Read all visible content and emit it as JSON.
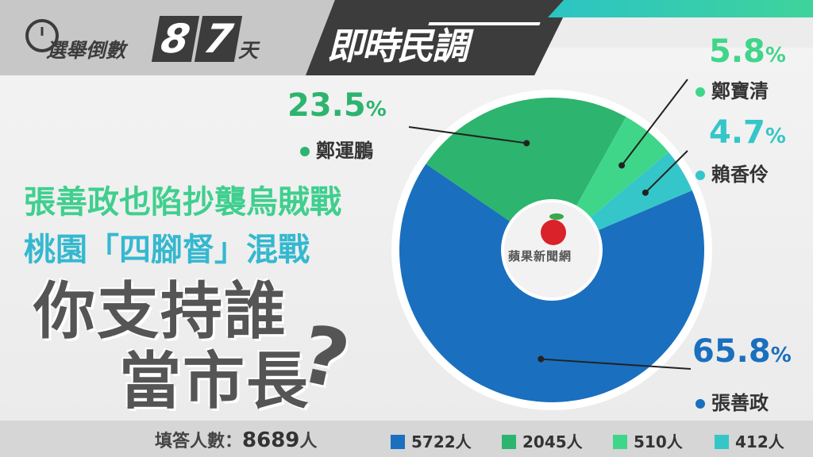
{
  "header": {
    "countdown_label": "選舉倒數",
    "countdown_digits": [
      "8",
      "7"
    ],
    "countdown_unit": "天",
    "poll_title": "即時民調"
  },
  "headlines": {
    "line1": "張善政也陷抄襲烏賊戰",
    "line2": "桃園「四腳督」混戰",
    "question_line1": "你支持誰",
    "question_line2": "當市長",
    "question_mark": "?"
  },
  "logo": {
    "text": "蘋果新聞網"
  },
  "footer": {
    "respondents_label": "填答人數：",
    "respondents_count": "8689",
    "respondents_unit": "人"
  },
  "colors": {
    "blue": "#1a6fbf",
    "green": "#2db46e",
    "light_green": "#3fd68a",
    "teal": "#35c6c9"
  },
  "chart_data": {
    "type": "pie",
    "series": [
      {
        "name": "張善政",
        "value": 65.8,
        "count": "5722",
        "color": "#1a6fbf"
      },
      {
        "name": "鄭運鵬",
        "value": 23.5,
        "count": "2045",
        "color": "#2db46e"
      },
      {
        "name": "鄭寶清",
        "value": 5.8,
        "count": "510",
        "color": "#3fd68a"
      },
      {
        "name": "賴香伶",
        "value": 4.7,
        "count": "412",
        "color": "#35c6c9"
      }
    ],
    "labels": [
      {
        "pct": "65.8",
        "pct_sign": "%",
        "name": "張善政"
      },
      {
        "pct": "23.5",
        "pct_sign": "%",
        "name": "鄭運鵬"
      },
      {
        "pct": "5.8",
        "pct_sign": "%",
        "name": "鄭寶清"
      },
      {
        "pct": "4.7",
        "pct_sign": "%",
        "name": "賴香伶"
      }
    ],
    "legend_unit": "人"
  }
}
